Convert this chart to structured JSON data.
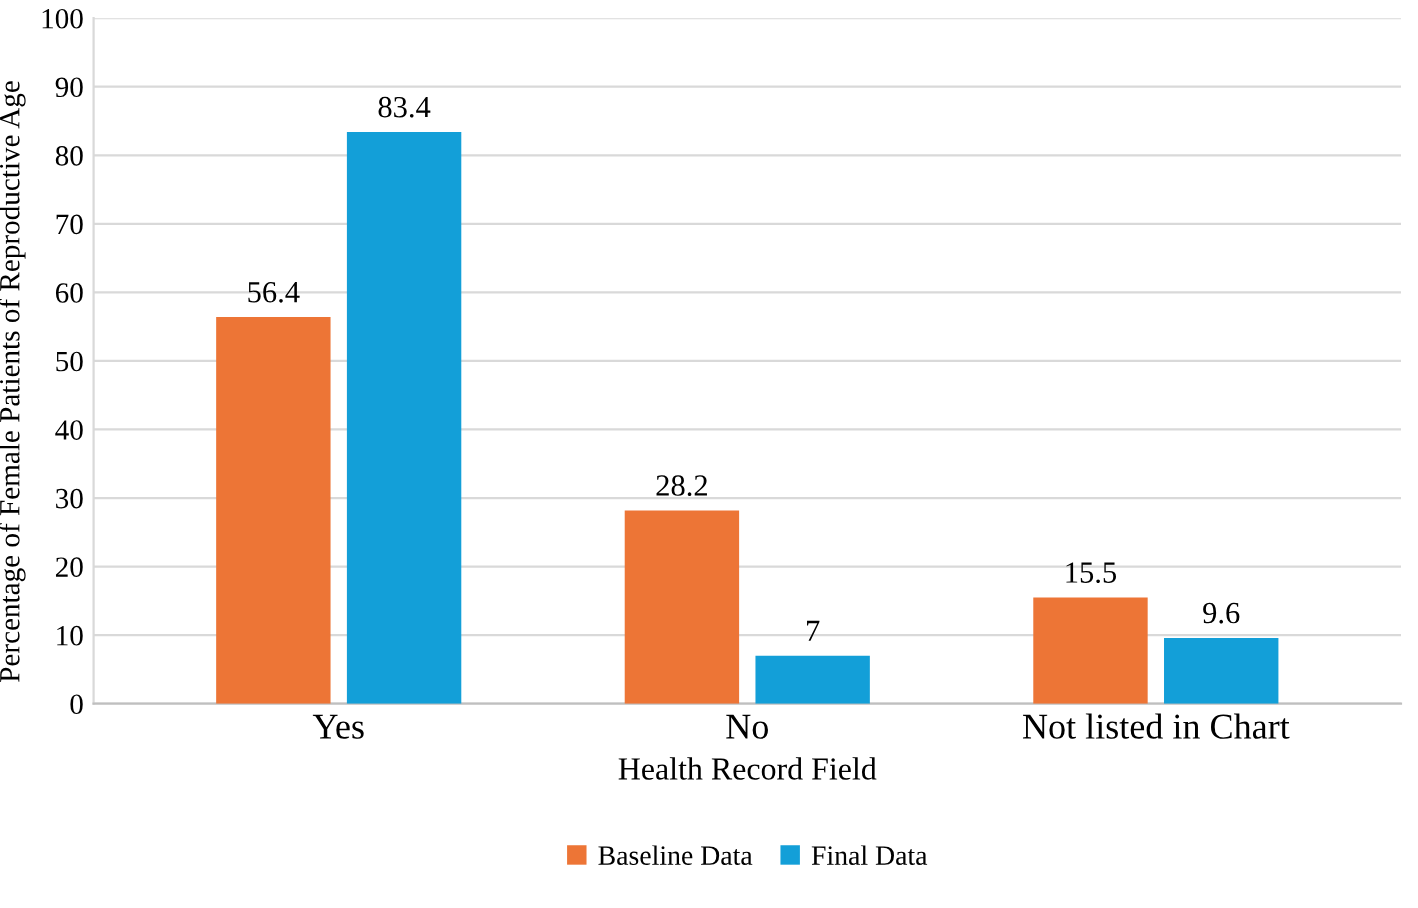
{
  "chart_data": {
    "type": "bar",
    "xlabel": "Health Record Field",
    "ylabel": "Percentage of Female Patients of Reproductive Age",
    "categories": [
      "Yes",
      "No",
      "Not listed in Chart"
    ],
    "series": [
      {
        "name": "Baseline Data",
        "color": "#ed7536",
        "values": [
          56.4,
          28.2,
          15.5
        ]
      },
      {
        "name": "Final Data",
        "color": "#139fd8",
        "values": [
          83.4,
          7,
          9.6
        ]
      }
    ],
    "ylim": [
      0,
      100
    ],
    "yticks": [
      0,
      10,
      20,
      30,
      40,
      50,
      60,
      70,
      80,
      90,
      100
    ],
    "grid": "y",
    "legend": "bottom",
    "data_labels": true
  }
}
